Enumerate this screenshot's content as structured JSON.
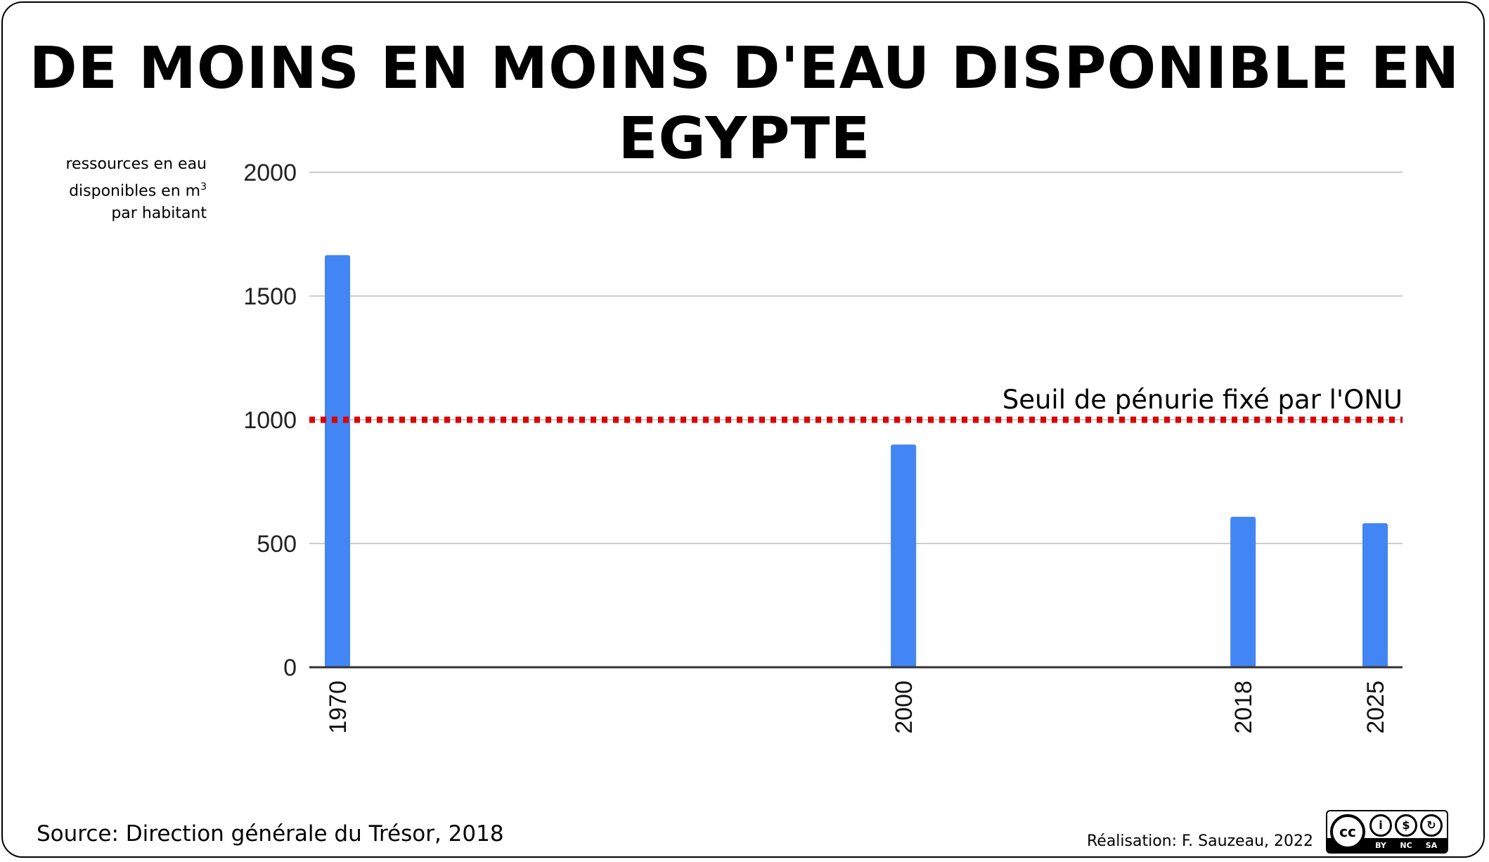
{
  "title": "DE MOINS EN MOINS D'EAU DISPONIBLE EN EGYPTE",
  "y_axis_label": {
    "line1": "ressources en eau",
    "line2_text": "disponibles en m",
    "line2_sup": "3",
    "line3": "par habitant"
  },
  "threshold_label": "Seuil de pénurie fixé par l'ONU",
  "source": "Source: Direction générale du Trésor, 2018",
  "credit": "Réalisation: F. Sauzeau, 2022",
  "license": {
    "logo": "cc",
    "icons": [
      "by-icon",
      "nc-icon",
      "sa-icon"
    ],
    "tags": [
      "BY",
      "NC",
      "SA"
    ]
  },
  "colors": {
    "bar": "#4285f4",
    "threshold": "#e00000",
    "grid": "#cccccc",
    "axis": "#333333"
  },
  "chart_data": {
    "type": "bar",
    "title": "DE MOINS EN MOINS D'EAU DISPONIBLE EN EGYPTE",
    "x": [
      1970,
      2000,
      2018,
      2025
    ],
    "values": [
      1665,
      900,
      608,
      582
    ],
    "xlabel": "",
    "ylabel": "ressources en eau disponibles en m3 par habitant",
    "ylim": [
      0,
      2000
    ],
    "yticks": [
      0,
      500,
      1000,
      1500,
      2000
    ],
    "xlim": [
      1970,
      2025
    ],
    "threshold": {
      "value": 1000,
      "label": "Seuil de pénurie fixé par l'ONU",
      "style": "dotted"
    },
    "grid": true,
    "legend": "none"
  }
}
